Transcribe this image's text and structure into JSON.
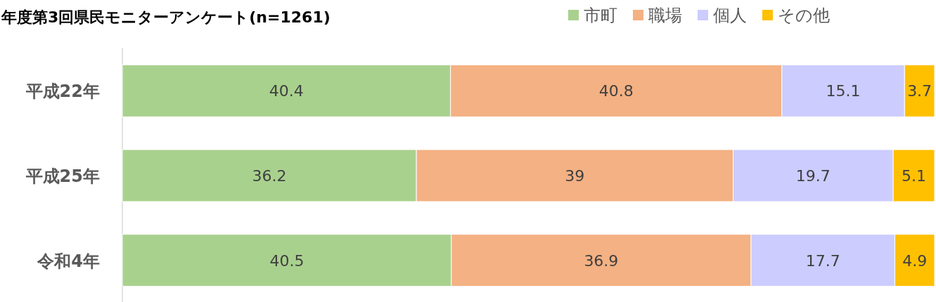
{
  "chart_data": {
    "type": "bar",
    "orientation": "horizontal",
    "stacked": true,
    "title": "年度第3回県民モニターアンケート(n=1261)",
    "categories": [
      "平成22年",
      "平成25年",
      "令和4年"
    ],
    "series": [
      {
        "name": "市町",
        "color": "#a9d18e",
        "values": [
          40.4,
          36.2,
          40.5
        ]
      },
      {
        "name": "職場",
        "color": "#f4b183",
        "values": [
          40.8,
          39,
          36.9
        ]
      },
      {
        "name": "個人",
        "color": "#ccccff",
        "values": [
          15.1,
          19.7,
          17.7
        ]
      },
      {
        "name": "その他",
        "color": "#ffc000",
        "values": [
          3.7,
          5.1,
          4.9
        ]
      }
    ],
    "xlim": [
      0,
      100
    ],
    "data_labels": true,
    "legend": "top right",
    "tick_labels": "y"
  }
}
